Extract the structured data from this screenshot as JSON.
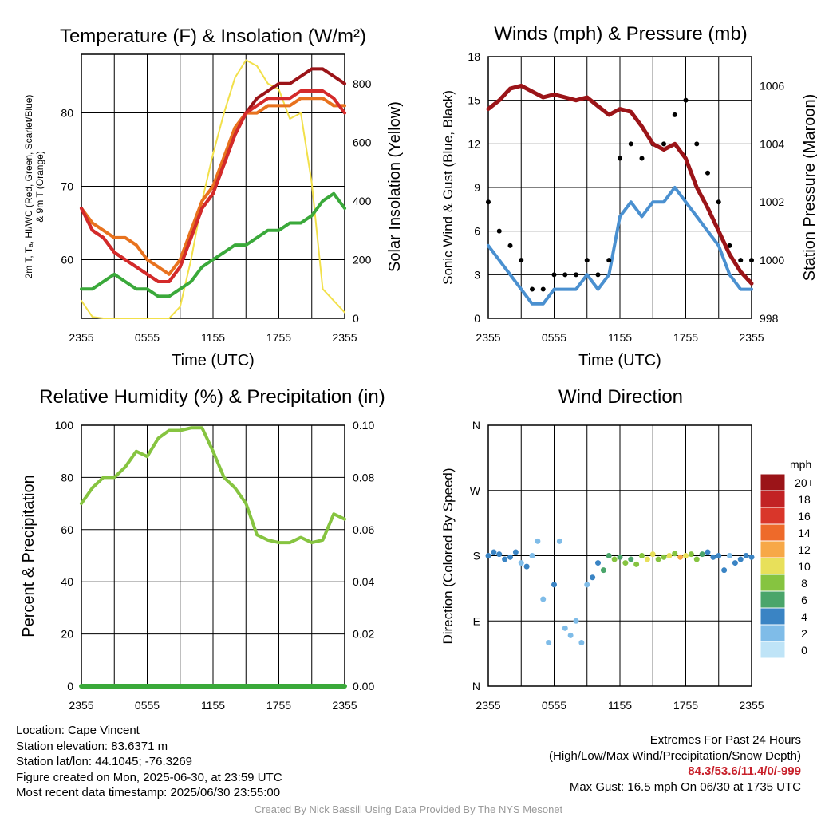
{
  "panels": {
    "temp": {
      "title": "Temperature (F) & Insolation (W/m²)",
      "xlabel": "Time (UTC)",
      "ylabel_left_1": "2m T, Tₐ, HI/WC (Red, Green, Scarlet/Blue)",
      "ylabel_left_2": "& 9m T (Orange)",
      "ylabel_right": "Solar Insolation (Yellow)"
    },
    "wind": {
      "title": "Winds (mph) & Pressure (mb)",
      "xlabel": "Time (UTC)",
      "ylabel_left": "Sonic Wind & Gust (Blue, Black)",
      "ylabel_right": "Station Pressure (Maroon)"
    },
    "rh": {
      "title": "Relative Humidity (%) & Precipitation (in)",
      "ylabel_left": "Percent & Precipitation"
    },
    "dir": {
      "title": "Wind Direction",
      "ylabel_left": "Direction (Colored By Speed)",
      "legend_unit": "mph"
    }
  },
  "chart_data": [
    {
      "type": "line",
      "title": "Temperature (F) & Insolation (W/m²)",
      "xlabel": "Time (UTC)",
      "ylabel": "2m T, Td, HI/WC (Red, Green, Scarlet/Blue) & 9m T (Orange)",
      "y2label": "Solar Insolation (Yellow)",
      "x_ticks": [
        "2355",
        "0555",
        "1155",
        "1755",
        "2355"
      ],
      "x_range_hours": [
        0,
        24
      ],
      "ylim": [
        52,
        88
      ],
      "y_ticks": [
        60,
        70,
        80
      ],
      "y2lim": [
        0,
        900
      ],
      "y2_ticks": [
        0,
        200,
        400,
        600,
        800
      ],
      "grid": true,
      "x": [
        0,
        1,
        2,
        3,
        4,
        5,
        6,
        7,
        8,
        9,
        10,
        11,
        12,
        13,
        14,
        15,
        16,
        17,
        18,
        19,
        20,
        21,
        22,
        23,
        24
      ],
      "series": [
        {
          "color": "#e8721e",
          "axis": "left",
          "values": [
            67,
            65,
            64,
            63,
            63,
            62,
            60,
            59,
            58,
            60,
            64,
            68,
            70,
            74,
            78,
            80,
            80,
            81,
            81,
            81,
            82,
            82,
            82,
            81,
            81
          ]
        },
        {
          "color": "#d42a2a",
          "axis": "left",
          "values": [
            67,
            64,
            63,
            61,
            60,
            59,
            58,
            57,
            57,
            59,
            63,
            67,
            69,
            73,
            77,
            80,
            81,
            82,
            82,
            82,
            83,
            83,
            83,
            82,
            80
          ]
        },
        {
          "color": "#9b1418",
          "axis": "left",
          "values": [
            67,
            64,
            63,
            61,
            60,
            59,
            58,
            57,
            57,
            59,
            63,
            67,
            69,
            73,
            77,
            80,
            82,
            83,
            84,
            84,
            85,
            86,
            86,
            85,
            84
          ]
        },
        {
          "color": "#3aa93a",
          "axis": "left",
          "values": [
            56,
            56,
            57,
            58,
            57,
            56,
            56,
            55,
            55,
            56,
            57,
            59,
            60,
            61,
            62,
            62,
            63,
            64,
            64,
            65,
            65,
            66,
            68,
            69,
            67
          ]
        },
        {
          "color": "#f2e04a",
          "axis": "right",
          "values": [
            60,
            5,
            0,
            0,
            0,
            0,
            0,
            0,
            0,
            40,
            200,
            400,
            560,
            700,
            820,
            880,
            860,
            800,
            780,
            680,
            700,
            460,
            100,
            60,
            20
          ]
        }
      ]
    },
    {
      "type": "line",
      "title": "Winds (mph) & Pressure (mb)",
      "xlabel": "Time (UTC)",
      "ylabel": "Sonic Wind & Gust (Blue, Black)",
      "y2label": "Station Pressure (Maroon)",
      "x_ticks": [
        "2355",
        "0555",
        "1155",
        "1755",
        "2355"
      ],
      "x_range_hours": [
        0,
        24
      ],
      "ylim": [
        0,
        18
      ],
      "y_ticks": [
        0,
        3,
        6,
        9,
        12,
        15,
        18
      ],
      "y2lim": [
        998,
        1007
      ],
      "y2_ticks": [
        998,
        1000,
        1002,
        1004,
        1006
      ],
      "grid": true,
      "x": [
        0,
        1,
        2,
        3,
        4,
        5,
        6,
        7,
        8,
        9,
        10,
        11,
        12,
        13,
        14,
        15,
        16,
        17,
        18,
        19,
        20,
        21,
        22,
        23,
        24
      ],
      "series": [
        {
          "name": "Sonic Wind",
          "color": "#4a90d0",
          "axis": "left",
          "values": [
            5,
            4,
            3,
            2,
            1,
            1,
            2,
            2,
            2,
            3,
            2,
            3,
            7,
            8,
            7,
            8,
            8,
            9,
            8,
            7,
            6,
            5,
            3,
            2,
            2
          ]
        },
        {
          "name": "Gust",
          "color": "#000000",
          "type": "scatter",
          "axis": "left",
          "values": [
            8,
            6,
            5,
            4,
            2,
            2,
            3,
            3,
            3,
            4,
            3,
            4,
            11,
            12,
            11,
            12,
            12,
            14,
            15,
            12,
            10,
            8,
            5,
            4,
            4
          ]
        },
        {
          "name": "Station Pressure",
          "color": "#9b1418",
          "axis": "right",
          "values": [
            1005.2,
            1005.5,
            1005.9,
            1006.0,
            1005.8,
            1005.6,
            1005.7,
            1005.6,
            1005.5,
            1005.6,
            1005.3,
            1005.0,
            1005.2,
            1005.1,
            1004.6,
            1004.0,
            1003.8,
            1004.0,
            1003.5,
            1002.5,
            1001.8,
            1001.0,
            1000.2,
            999.6,
            999.2
          ]
        }
      ]
    },
    {
      "type": "line",
      "title": "Relative Humidity (%) & Precipitation (in)",
      "ylabel": "Percent & Precipitation",
      "x_ticks": [
        "2355",
        "0555",
        "1155",
        "1755",
        "2355"
      ],
      "x_range_hours": [
        0,
        24
      ],
      "ylim": [
        0,
        100
      ],
      "y_ticks": [
        0,
        20,
        40,
        60,
        80,
        100
      ],
      "y2lim": [
        0,
        0.1
      ],
      "y2_ticks": [
        "0.00",
        "0.02",
        "0.04",
        "0.06",
        "0.08",
        "0.10"
      ],
      "grid": true,
      "x": [
        0,
        1,
        2,
        3,
        4,
        5,
        6,
        7,
        8,
        9,
        10,
        11,
        12,
        13,
        14,
        15,
        16,
        17,
        18,
        19,
        20,
        21,
        22,
        23,
        24
      ],
      "series": [
        {
          "name": "Relative Humidity",
          "color": "#86c440",
          "axis": "left",
          "values": [
            70,
            76,
            80,
            80,
            84,
            90,
            88,
            95,
            98,
            98,
            99,
            99,
            90,
            80,
            76,
            70,
            58,
            56,
            55,
            55,
            57,
            55,
            56,
            66,
            64
          ]
        },
        {
          "name": "Precipitation",
          "color": "#3aa93a",
          "axis": "right",
          "values": [
            0,
            0,
            0,
            0,
            0,
            0,
            0,
            0,
            0,
            0,
            0,
            0,
            0,
            0,
            0,
            0,
            0,
            0,
            0,
            0,
            0,
            0,
            0,
            0,
            0
          ]
        }
      ]
    },
    {
      "type": "scatter",
      "title": "Wind Direction",
      "ylabel": "Direction (Colored By Speed)",
      "x_ticks": [
        "2355",
        "0555",
        "1155",
        "1755",
        "2355"
      ],
      "x_range_hours": [
        0,
        24
      ],
      "ylim": [
        0,
        360
      ],
      "y_tick_labels": [
        "N",
        "E",
        "S",
        "W",
        "N"
      ],
      "y_tick_values": [
        0,
        90,
        180,
        270,
        360
      ],
      "grid": true,
      "x": [
        0,
        0.5,
        1,
        1.5,
        2,
        2.5,
        3,
        3.5,
        4,
        4.5,
        5,
        5.5,
        6,
        6.5,
        7,
        7.5,
        8,
        8.5,
        9,
        9.5,
        10,
        10.5,
        11,
        11.5,
        12,
        12.5,
        13,
        13.5,
        14,
        14.5,
        15,
        15.5,
        16,
        16.5,
        17,
        17.5,
        18,
        18.5,
        19,
        19.5,
        20,
        20.5,
        21,
        21.5,
        22,
        22.5,
        23,
        23.5,
        24
      ],
      "y": [
        180,
        185,
        182,
        175,
        178,
        185,
        170,
        165,
        180,
        200,
        120,
        60,
        140,
        200,
        80,
        70,
        90,
        60,
        140,
        150,
        170,
        160,
        180,
        175,
        178,
        170,
        175,
        168,
        180,
        175,
        182,
        175,
        178,
        180,
        183,
        178,
        180,
        182,
        175,
        182,
        185,
        178,
        180,
        160,
        180,
        170,
        175,
        180,
        178
      ],
      "speed": [
        3,
        4,
        3,
        4,
        3,
        3,
        2,
        3,
        2,
        1,
        2,
        1,
        3,
        1,
        2,
        2,
        1,
        2,
        2,
        3,
        4,
        5,
        6,
        7,
        6,
        7,
        6,
        8,
        7,
        9,
        10,
        8,
        7,
        9,
        8,
        11,
        9,
        8,
        7,
        5,
        4,
        3,
        4,
        3,
        2,
        3,
        4,
        3,
        3
      ],
      "colorbar": {
        "unit": "mph",
        "labels": [
          "20+",
          "18",
          "16",
          "14",
          "12",
          "10",
          "8",
          "6",
          "4",
          "2",
          "0"
        ],
        "colors": [
          "#9b1418",
          "#c22224",
          "#d9362a",
          "#ee6a2a",
          "#f7a847",
          "#e8e05a",
          "#86c440",
          "#4aa56a",
          "#3a84c4",
          "#7fbce8",
          "#bfe4f7"
        ]
      }
    }
  ],
  "footer": {
    "location": "Location: Cape Vincent",
    "elevation": "Station elevation: 83.6371 m",
    "latlon": "Station lat/lon: 44.1045; -76.3269",
    "created": "Figure created on Mon, 2025-06-30, at 23:59 UTC",
    "recent": "Most recent data timestamp: 2025/06/30 23:55:00",
    "extremes_title": "Extremes For Past 24 Hours",
    "extremes_sub": "(High/Low/Max Wind/Precipitation/Snow Depth)",
    "extremes_values": "84.3/53.6/11.4/0/-999",
    "max_gust": "Max Gust: 16.5 mph On 06/30 at 1735 UTC",
    "credit": "Created By Nick Bassill Using Data Provided By The NYS Mesonet"
  }
}
